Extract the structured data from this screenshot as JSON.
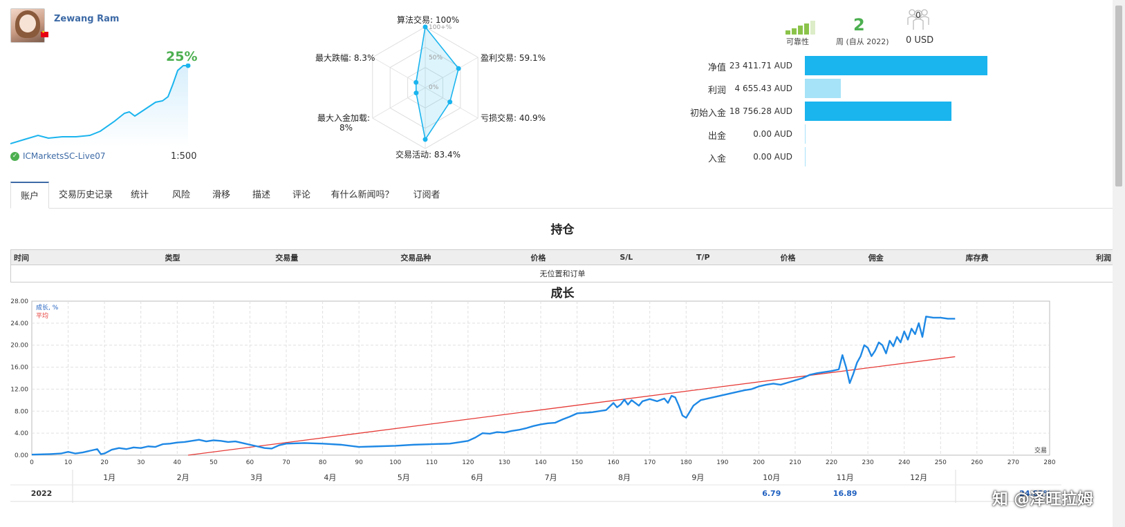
{
  "profile": {
    "name": "Zewang Ram",
    "growth_pct": "25%",
    "broker": "ICMarketsSC-Live07",
    "leverage": "1:500",
    "flag_country": "China"
  },
  "radar": {
    "labels": {
      "algo": "算法交易: 100%",
      "profit_trades": "盈利交易: 59.1%",
      "loss_trades": "亏损交易: 40.9%",
      "activity": "交易活动: 83.4%",
      "max_load_1": "最大入金加载:",
      "max_load_2": "8%",
      "max_drawdown": "最大跌幅: 8.3%"
    },
    "ticks": {
      "t100": "100+%",
      "t50": "50%",
      "t0": "0%"
    },
    "values": {
      "algo": 100,
      "profit_trades": 59.1,
      "loss_trades": 40.9,
      "activity": 83.4,
      "max_load": 8,
      "max_drawdown": 8.3
    }
  },
  "stats": {
    "reliability_label": "可靠性",
    "weeks_value": "2",
    "weeks_label": "周 (自从 2022)",
    "subscribers_count": "0",
    "subscribers_value": "0 USD",
    "rows": [
      {
        "label": "净值",
        "value": "23 411.71 AUD",
        "amount": 23411.71,
        "color": "#1ab4ee"
      },
      {
        "label": "利润",
        "value": "4 655.43 AUD",
        "amount": 4655.43,
        "color": "#a6e3f8"
      },
      {
        "label": "初始入金",
        "value": "18 756.28 AUD",
        "amount": 18756.28,
        "color": "#1ab4ee"
      },
      {
        "label": "出金",
        "value": "0.00 AUD",
        "amount": 0,
        "color": "#a6e3f8"
      },
      {
        "label": "入金",
        "value": "0.00 AUD",
        "amount": 0,
        "color": "#a6e3f8"
      }
    ]
  },
  "tabs": [
    "账户",
    "交易历史记录",
    "统计",
    "风险",
    "滑移",
    "描述",
    "评论",
    "有什么新闻吗？",
    "订阅者"
  ],
  "positions": {
    "title": "持仓",
    "columns": [
      "时间",
      "类型",
      "交易量",
      "交易品种",
      "价格",
      "S/L",
      "T/P",
      "价格",
      "佣金",
      "库存费",
      "利润"
    ],
    "empty_text": "无位置和订单"
  },
  "growth": {
    "title": "成长",
    "legend_growth": "成长, %",
    "legend_avg": "平均",
    "x_axis_label": "交易",
    "months": [
      "1月",
      "2月",
      "3月",
      "4月",
      "5月",
      "6月",
      "7月",
      "8月",
      "9月",
      "10月",
      "11月",
      "12月"
    ],
    "year": "2022",
    "year_values": {
      "10月": "6.79",
      "11月": "16.89",
      "total": "24.82%"
    }
  },
  "chart_data": {
    "type": "line",
    "xlabel": "交易",
    "ylabel": "",
    "xlim": [
      0,
      280
    ],
    "ylim": [
      0,
      28
    ],
    "xticks": [
      0,
      10,
      20,
      30,
      40,
      50,
      60,
      70,
      80,
      90,
      100,
      110,
      120,
      130,
      140,
      150,
      160,
      170,
      180,
      190,
      200,
      210,
      220,
      230,
      240,
      250,
      260,
      270,
      280
    ],
    "yticks": [
      "0.00",
      "4.00",
      "8.00",
      "12.00",
      "16.00",
      "20.00",
      "24.00",
      "28.00"
    ],
    "grid": true,
    "series": [
      {
        "name": "成长, %",
        "color": "#1e88e5",
        "x": [
          0,
          5,
          8,
          10,
          12,
          14,
          16,
          18,
          19,
          20,
          22,
          24,
          26,
          28,
          30,
          32,
          34,
          36,
          38,
          40,
          42,
          44,
          46,
          48,
          50,
          52,
          54,
          56,
          58,
          60,
          62,
          64,
          66,
          68,
          70,
          75,
          80,
          85,
          90,
          95,
          100,
          105,
          110,
          115,
          118,
          120,
          122,
          124,
          126,
          128,
          130,
          132,
          134,
          136,
          138,
          140,
          142,
          144,
          146,
          148,
          150,
          152,
          154,
          156,
          158,
          160,
          161,
          162,
          163,
          164,
          165,
          166,
          167,
          168,
          170,
          172,
          174,
          175,
          176,
          177,
          178,
          179,
          180,
          182,
          184,
          186,
          188,
          190,
          192,
          194,
          196,
          198,
          200,
          202,
          204,
          206,
          208,
          210,
          212,
          214,
          216,
          218,
          220,
          222,
          223,
          224,
          225,
          226,
          227,
          228,
          229,
          230,
          231,
          232,
          233,
          234,
          235,
          236,
          237,
          238,
          239,
          240,
          241,
          242,
          243,
          244,
          245,
          246,
          248,
          250,
          252,
          254
        ],
        "y": [
          0.1,
          0.2,
          0.3,
          0.6,
          0.3,
          0.5,
          0.8,
          1.1,
          0.2,
          0.3,
          1.0,
          1.3,
          1.1,
          1.4,
          1.3,
          1.6,
          1.5,
          2.0,
          2.1,
          2.3,
          2.4,
          2.6,
          2.8,
          2.5,
          2.7,
          2.6,
          2.4,
          2.5,
          2.2,
          1.9,
          1.6,
          1.3,
          1.2,
          1.8,
          2.1,
          2.2,
          2.1,
          1.9,
          1.5,
          1.6,
          1.7,
          1.9,
          2.0,
          2.1,
          2.4,
          2.6,
          3.2,
          4.0,
          3.9,
          4.2,
          4.1,
          4.4,
          4.6,
          4.9,
          5.3,
          5.6,
          5.8,
          5.9,
          6.5,
          7.0,
          7.6,
          7.7,
          7.8,
          8.0,
          8.2,
          9.5,
          8.7,
          9.2,
          10.1,
          9.2,
          10.0,
          9.5,
          9.0,
          9.8,
          10.2,
          9.8,
          10.3,
          9.5,
          10.8,
          10.5,
          9.0,
          7.2,
          6.8,
          9.0,
          10.0,
          10.3,
          10.6,
          10.9,
          11.2,
          11.5,
          11.8,
          12.0,
          12.5,
          12.8,
          13.0,
          12.8,
          13.2,
          13.6,
          14.0,
          14.6,
          14.9,
          15.1,
          15.3,
          15.6,
          18.2,
          16.0,
          13.1,
          14.8,
          16.8,
          18.0,
          20.0,
          19.5,
          18.0,
          19.0,
          20.5,
          20.0,
          18.5,
          20.8,
          19.8,
          21.5,
          20.5,
          22.5,
          21.0,
          23.0,
          22.0,
          24.0,
          21.5,
          25.2,
          25.0,
          25.0,
          24.8,
          24.8
        ]
      },
      {
        "name": "平均",
        "color": "#e53935",
        "x": [
          43,
          254
        ],
        "y": [
          0.0,
          17.9
        ]
      }
    ]
  }
}
